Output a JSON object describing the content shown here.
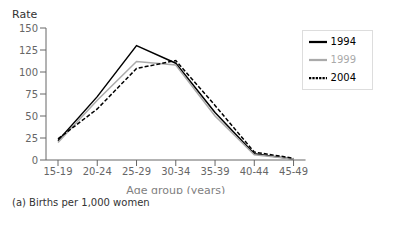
{
  "chart_data": {
    "type": "line",
    "ylabel": "Rate",
    "xlabel": "Age group (years)",
    "footnote": "(a) Births per 1,000 women",
    "categories": [
      "15-19",
      "20-24",
      "25-29",
      "30-34",
      "35-39",
      "40-44",
      "45-49"
    ],
    "series": [
      {
        "name": "1994",
        "color": "#000000",
        "line_style": "solid",
        "values": [
          22,
          72,
          130,
          110,
          54,
          7,
          1
        ]
      },
      {
        "name": "1999",
        "color": "#aaaaaa",
        "line_style": "solid",
        "values": [
          20,
          68,
          112,
          108,
          50,
          6,
          1
        ]
      },
      {
        "name": "2004",
        "color": "#000000",
        "line_style": "dashed",
        "values": [
          24,
          58,
          104,
          113,
          62,
          9,
          2
        ]
      }
    ],
    "ylim": [
      0,
      150
    ],
    "yticks": [
      0,
      25,
      50,
      75,
      100,
      125,
      150
    ],
    "grid": false,
    "legend": "upper right"
  }
}
